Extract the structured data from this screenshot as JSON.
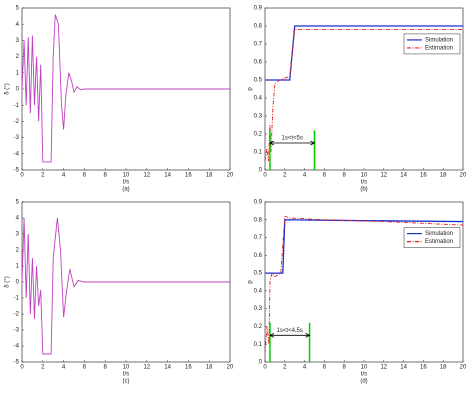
{
  "chart_data": [
    {
      "type": "line",
      "caption": "(a)",
      "xlabel": "t/s",
      "ylabel": "δ (°)",
      "xlim": [
        0,
        20
      ],
      "xticks": [
        0,
        2,
        4,
        6,
        8,
        10,
        12,
        14,
        16,
        18,
        20
      ],
      "ylim": [
        -5,
        5
      ],
      "yticks": [
        -5,
        -4,
        -3,
        -2,
        -1,
        0,
        1,
        2,
        3,
        4,
        5
      ],
      "series": [
        {
          "color": "#c040c0",
          "linestyle": "solid",
          "x": [
            0,
            0.2,
            0.4,
            0.6,
            0.8,
            1.0,
            1.2,
            1.4,
            1.6,
            1.8,
            2.0,
            2.4,
            2.8,
            3.0,
            3.2,
            3.5,
            3.8,
            4.0,
            4.2,
            4.5,
            4.8,
            5.0,
            5.3,
            5.6,
            6,
            8,
            20
          ],
          "values": [
            0,
            3.0,
            -1.0,
            3.2,
            -1.5,
            3.3,
            -1.0,
            2.0,
            -2.0,
            1.5,
            -4.5,
            -4.5,
            -4.5,
            2.0,
            4.6,
            4.0,
            -1.0,
            -2.5,
            -0.5,
            1.0,
            0.4,
            -0.2,
            0.15,
            -0.05,
            0,
            0,
            0
          ]
        }
      ]
    },
    {
      "type": "line",
      "caption": "(b)",
      "xlabel": "t/s",
      "ylabel": "p",
      "xlim": [
        0,
        20
      ],
      "xticks": [
        0,
        2,
        4,
        6,
        8,
        10,
        12,
        14,
        16,
        18,
        20
      ],
      "ylim": [
        0,
        0.9
      ],
      "yticks": [
        0,
        0.1,
        0.2,
        0.3,
        0.4,
        0.5,
        0.6,
        0.7,
        0.8,
        0.9
      ],
      "legend": "upper right",
      "series": [
        {
          "name": "Simulation",
          "color": "#1f2fd0",
          "linestyle": "solid",
          "x": [
            0,
            2.5,
            3.0,
            20
          ],
          "values": [
            0.5,
            0.5,
            0.8,
            0.8
          ]
        },
        {
          "name": "Estimation",
          "color": "#e02020",
          "linestyle": "dashdot",
          "x": [
            0,
            0.2,
            0.35,
            0.5,
            0.6,
            0.8,
            1.0,
            1.5,
            2.5,
            3.0,
            3.2,
            20
          ],
          "values": [
            0.05,
            0.12,
            0.05,
            0.25,
            0.1,
            0.35,
            0.48,
            0.5,
            0.52,
            0.78,
            0.78,
            0.78
          ]
        }
      ],
      "annotation": {
        "text": "1s<t<5s",
        "x": [
          0.5,
          5
        ],
        "y": 0.15,
        "line_top": 0.22,
        "color": "#00cc00"
      }
    },
    {
      "type": "line",
      "caption": "(c)",
      "xlabel": "t/s",
      "ylabel": "δ (°)",
      "xlim": [
        0,
        20
      ],
      "xticks": [
        0,
        2,
        4,
        6,
        8,
        10,
        12,
        14,
        16,
        18,
        20
      ],
      "ylim": [
        -5,
        5
      ],
      "yticks": [
        -5,
        -4,
        -3,
        -2,
        -1,
        0,
        1,
        2,
        3,
        4,
        5
      ],
      "series": [
        {
          "color": "#c040c0",
          "linestyle": "solid",
          "x": [
            0,
            0.2,
            0.4,
            0.6,
            0.8,
            1.0,
            1.2,
            1.4,
            1.6,
            1.8,
            2.0,
            2.4,
            2.8,
            3.0,
            3.4,
            3.7,
            4.0,
            4.3,
            4.6,
            5.0,
            5.4,
            6,
            8,
            20
          ],
          "values": [
            0,
            4.0,
            -1.0,
            3.0,
            -2.0,
            1.5,
            -2.3,
            1.0,
            -1.5,
            -0.5,
            -4.5,
            -4.5,
            -4.5,
            1.5,
            4.0,
            2.0,
            -2.2,
            -0.5,
            0.8,
            -0.3,
            0.1,
            0,
            0,
            0
          ]
        }
      ]
    },
    {
      "type": "line",
      "caption": "(d)",
      "xlabel": "t/s",
      "ylabel": "p",
      "xlim": [
        0,
        20
      ],
      "xticks": [
        0,
        2,
        4,
        6,
        8,
        10,
        12,
        14,
        16,
        18,
        20
      ],
      "ylim": [
        0,
        0.9
      ],
      "yticks": [
        0,
        0.1,
        0.2,
        0.3,
        0.4,
        0.5,
        0.6,
        0.7,
        0.8,
        0.9
      ],
      "legend": "upper right",
      "series": [
        {
          "name": "Simulation",
          "color": "#1f2fd0",
          "linestyle": "solid",
          "x": [
            0,
            1.8,
            2.0,
            10,
            20
          ],
          "values": [
            0.5,
            0.5,
            0.8,
            0.795,
            0.79
          ]
        },
        {
          "name": "Estimation",
          "color": "#e02020",
          "linestyle": "dashdot",
          "x": [
            0,
            0.2,
            0.4,
            0.5,
            0.7,
            1.0,
            1.6,
            2.0,
            2.5,
            6,
            12,
            20
          ],
          "values": [
            0.05,
            0.2,
            0.1,
            0.45,
            0.5,
            0.48,
            0.5,
            0.82,
            0.81,
            0.8,
            0.79,
            0.77
          ]
        }
      ],
      "annotation": {
        "text": "1s<t<4.5s",
        "x": [
          0.5,
          4.5
        ],
        "y": 0.15,
        "line_top": 0.22,
        "color": "#00cc00"
      }
    }
  ]
}
